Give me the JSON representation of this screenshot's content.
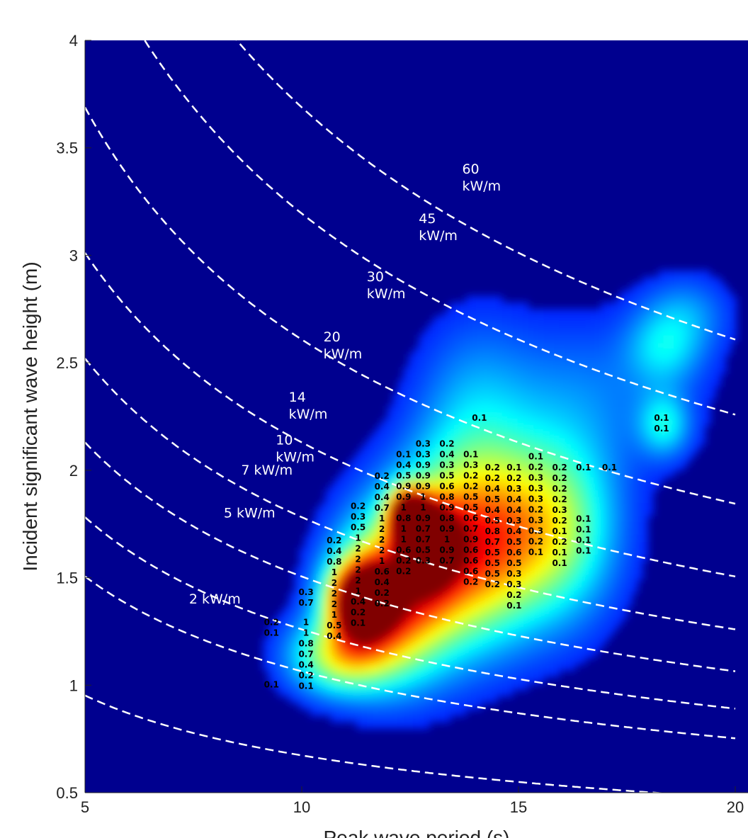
{
  "chart_data": {
    "type": "heatmap",
    "xlabel": "Peak wave period (s)",
    "ylabel": "Incident significant wave height (m)",
    "xlim": [
      5,
      20
    ],
    "ylim": [
      0.5,
      4
    ],
    "xticks": [
      "5",
      "10",
      "15",
      "20"
    ],
    "yticks": [
      "0.5",
      "1",
      "1.5",
      "2",
      "2.5",
      "3",
      "3.5",
      "4"
    ],
    "grid": false,
    "colormap": "jet",
    "background_color": "#00008F",
    "contour_line_color": "#FFFFFF",
    "density_blobs": [
      {
        "x": 11.3,
        "y": 1.38,
        "weight": 1.0,
        "sx": 0.5,
        "sy": 0.12
      },
      {
        "x": 12.4,
        "y": 1.78,
        "weight": 1.0,
        "sx": 0.3,
        "sy": 0.08
      },
      {
        "x": 12.9,
        "y": 1.65,
        "weight": 0.85,
        "sx": 0.4,
        "sy": 0.12
      },
      {
        "x": 12.0,
        "y": 1.4,
        "weight": 0.7,
        "sx": 0.9,
        "sy": 0.25
      },
      {
        "x": 13.5,
        "y": 1.6,
        "weight": 0.55,
        "sx": 1.1,
        "sy": 0.3
      },
      {
        "x": 14.8,
        "y": 1.7,
        "weight": 0.4,
        "sx": 1.2,
        "sy": 0.28
      },
      {
        "x": 10.8,
        "y": 1.12,
        "weight": 0.45,
        "sx": 0.8,
        "sy": 0.12
      },
      {
        "x": 16.0,
        "y": 1.75,
        "weight": 0.25,
        "sx": 0.9,
        "sy": 0.3
      },
      {
        "x": 16.5,
        "y": 2.35,
        "weight": 0.12,
        "sx": 1.8,
        "sy": 0.25
      },
      {
        "x": 18.3,
        "y": 2.2,
        "weight": 0.25,
        "sx": 0.4,
        "sy": 0.1
      },
      {
        "x": 18.3,
        "y": 2.55,
        "weight": 0.2,
        "sx": 0.6,
        "sy": 0.12
      },
      {
        "x": 13.9,
        "y": 2.25,
        "weight": 0.15,
        "sx": 0.9,
        "sy": 0.3
      },
      {
        "x": 18.8,
        "y": 2.72,
        "weight": 0.15,
        "sx": 0.7,
        "sy": 0.12
      }
    ],
    "power_contours": [
      {
        "label_value": "2",
        "unit": "kW/m",
        "label_x": 7.4,
        "label_y": 1.38
      },
      {
        "label_value": "5",
        "unit": "kW/m",
        "label_x": 8.2,
        "label_y": 1.78
      },
      {
        "label_value": "7",
        "unit": "kW/m",
        "label_x": 8.6,
        "label_y": 1.98
      },
      {
        "label_value": "10",
        "unit": "kW/m",
        "label_x": 9.4,
        "label_y": 2.12
      },
      {
        "label_value": "14",
        "unit": "kW/m",
        "label_x": 9.7,
        "label_y": 2.32
      },
      {
        "label_value": "20",
        "unit": "kW/m",
        "label_x": 10.5,
        "label_y": 2.6
      },
      {
        "label_value": "30",
        "unit": "kW/m",
        "label_x": 11.5,
        "label_y": 2.88
      },
      {
        "label_value": "45",
        "unit": "kW/m",
        "label_x": 12.7,
        "label_y": 3.15
      },
      {
        "label_value": "60",
        "unit": "kW/m",
        "label_x": 13.7,
        "label_y": 3.38
      }
    ],
    "cell_values": [
      {
        "x": 9.3,
        "y": 1.28,
        "values": [
          "0.2",
          "0.1"
        ]
      },
      {
        "x": 9.3,
        "y": 0.99,
        "values": [
          "0.1"
        ]
      },
      {
        "x": 10.1,
        "y": 1.42,
        "values": [
          "0.3",
          "0.7"
        ]
      },
      {
        "x": 10.1,
        "y": 1.28,
        "values": [
          "1",
          "1",
          "0.8",
          "0.7",
          "0.4",
          "0.2",
          "0.1"
        ]
      },
      {
        "x": 10.75,
        "y": 1.66,
        "values": [
          "0.2",
          "0.4",
          "0.8",
          "1",
          "2",
          "2",
          "2",
          "1",
          "0.5",
          "0.4"
        ]
      },
      {
        "x": 11.3,
        "y": 1.82,
        "values": [
          "0.2",
          "0.3",
          "0.5",
          "1",
          "2",
          "2",
          "2",
          "2",
          "1",
          "0.4",
          "0.2",
          "0.1"
        ]
      },
      {
        "x": 11.85,
        "y": 1.96,
        "values": [
          "0.2",
          "0.4",
          "0.4",
          "0.7",
          "1",
          "2",
          "2",
          "2",
          "1",
          "0.6",
          "0.4",
          "0.2",
          "0.2"
        ]
      },
      {
        "x": 12.35,
        "y": 2.06,
        "values": [
          "0.1",
          "0.4",
          "0.5",
          "0.9",
          "0.9",
          "1",
          "0.8",
          "1",
          "1",
          "0.6",
          "0.2",
          "0.2"
        ]
      },
      {
        "x": 12.8,
        "y": 2.11,
        "values": [
          "0.3",
          "0.3",
          "0.9",
          "0.9",
          "0.9",
          "1",
          "1",
          "0.9",
          "0.7",
          "0.7",
          "0.5",
          "0.3"
        ]
      },
      {
        "x": 13.35,
        "y": 2.11,
        "values": [
          "0.2",
          "0.4",
          "0.3",
          "0.5",
          "0.6",
          "0.8",
          "0.9",
          "0.8",
          "0.9",
          "1",
          "0.9",
          "0.7"
        ]
      },
      {
        "x": 13.9,
        "y": 2.06,
        "values": [
          "0.1",
          "0.3",
          "0.2",
          "0.2",
          "0.5",
          "0.5",
          "0.6",
          "0.7",
          "0.9",
          "0.6",
          "0.6",
          "0.6",
          "0.2"
        ]
      },
      {
        "x": 14.4,
        "y": 2.0,
        "values": [
          "0.2",
          "0.2",
          "0.4",
          "0.5",
          "0.4",
          "0.5",
          "0.8",
          "0.7",
          "0.5",
          "0.5",
          "0.5",
          "0.2"
        ]
      },
      {
        "x": 14.9,
        "y": 2.0,
        "values": [
          "0.1",
          "0.2",
          "0.3",
          "0.4",
          "0.4",
          "0.3",
          "0.4",
          "0.5",
          "0.6",
          "0.5",
          "0.3",
          "0.3",
          "0.2",
          "0.1"
        ]
      },
      {
        "x": 15.4,
        "y": 2.05,
        "values": [
          "0.1",
          "0.2",
          "0.3",
          "0.3",
          "0.3",
          "0.2",
          "0.3",
          "0.3",
          "0.2",
          "0.1"
        ]
      },
      {
        "x": 15.95,
        "y": 2.0,
        "values": [
          "0.2",
          "0.2",
          "0.2",
          "0.2",
          "0.3",
          "0.2",
          "0.1",
          "0.2",
          "0.1",
          "0.1"
        ]
      },
      {
        "x": 16.5,
        "y": 1.76,
        "values": [
          "0.1",
          "0.1",
          "0.1",
          "0.1"
        ]
      },
      {
        "x": 16.5,
        "y": 2.0,
        "values": [
          "0.1"
        ]
      },
      {
        "x": 17.1,
        "y": 2.0,
        "values": [
          "0.1"
        ]
      },
      {
        "x": 14.1,
        "y": 2.23,
        "values": [
          "0.1"
        ]
      },
      {
        "x": 18.3,
        "y": 2.23,
        "values": [
          "0.1",
          "0.1"
        ]
      }
    ]
  }
}
